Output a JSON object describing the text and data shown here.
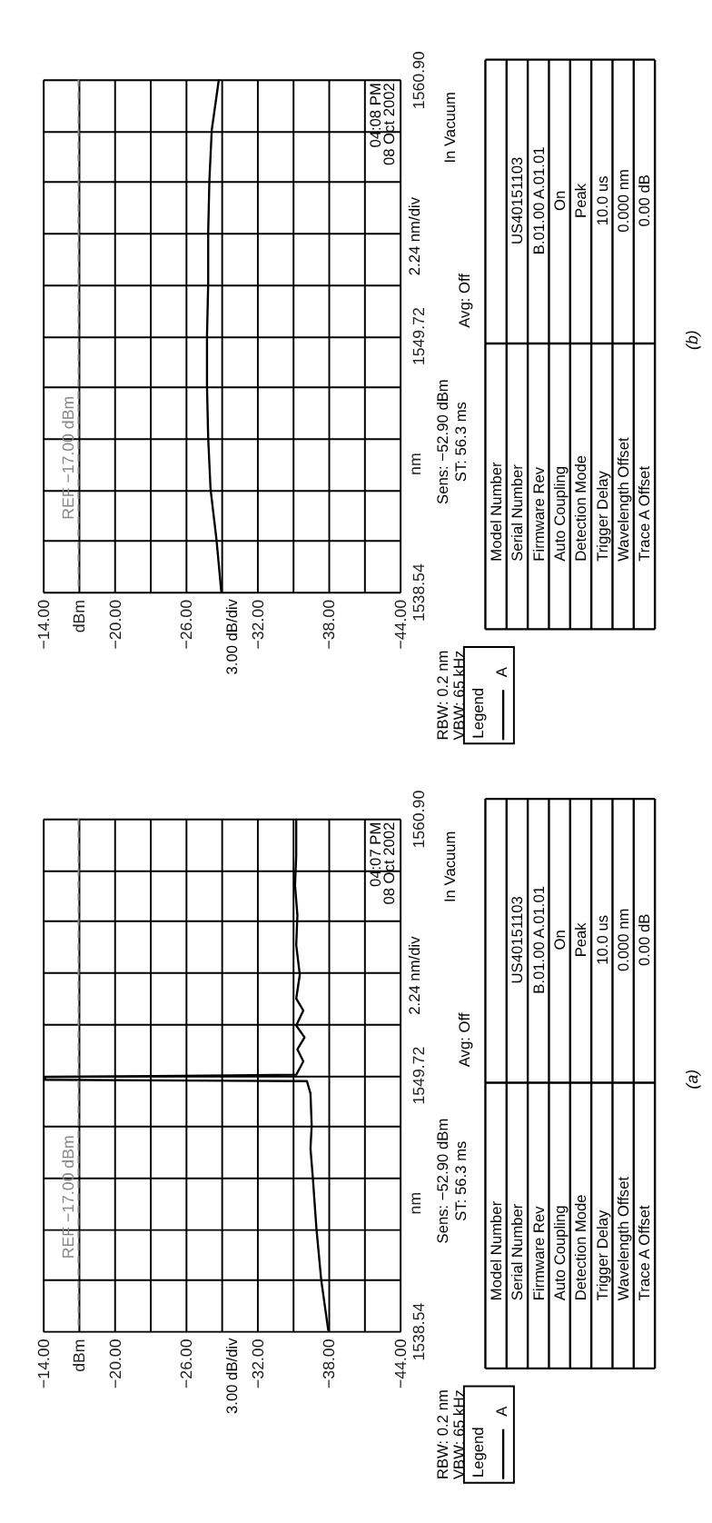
{
  "chart_data": [
    {
      "type": "line",
      "orientation": "horizontal",
      "grid": true,
      "legend": "bottom right",
      "legend_title": "Legend",
      "ylabel": "nm",
      "xlim": [
        -14,
        -44
      ],
      "ylim": [
        1538.54,
        1560.9
      ],
      "xticks": [
        {
          "value": -14,
          "label": "−14.00"
        },
        {
          "value": -17,
          "label": "dBm"
        },
        {
          "value": -20,
          "label": "−20.00"
        },
        {
          "value": -23,
          "label": null
        },
        {
          "value": -26,
          "label": "−26.00"
        },
        {
          "value": -29,
          "label": null
        },
        {
          "value": -32,
          "label": "−32.00"
        },
        {
          "value": -35,
          "label": null
        },
        {
          "value": -38,
          "label": "−38.00"
        },
        {
          "value": -41,
          "label": null
        },
        {
          "value": -44,
          "label": "−44.00"
        }
      ],
      "yticks": [
        {
          "value": 1538.54,
          "label": "1538.54"
        },
        {
          "value": 1540.78,
          "label": null
        },
        {
          "value": 1543.01,
          "label": null
        },
        {
          "value": 1545.25,
          "label": null
        },
        {
          "value": 1547.48,
          "label": null
        },
        {
          "value": 1549.72,
          "label": "1549.72"
        },
        {
          "value": 1551.96,
          "label": null
        },
        {
          "value": 1554.19,
          "label": null
        },
        {
          "value": 1556.43,
          "label": null
        },
        {
          "value": 1558.66,
          "label": null
        },
        {
          "value": 1560.9,
          "label": "1560.90"
        }
      ],
      "ref_lines": [
        {
          "axis": "x",
          "value": -17,
          "label": "REF −17.00 dBm",
          "color": "#888888",
          "line_style": "dashed"
        }
      ],
      "series": [
        {
          "name": "A",
          "color": "#000000",
          "x": [
            1538.54,
            1540.8,
            1543.01,
            1545.25,
            1547.51,
            1549.72,
            1551.98,
            1554.22,
            1556.48,
            1558.69,
            1560.9
          ],
          "values": [
            -29.0,
            -28.6,
            -28.1,
            -27.9,
            -27.8,
            -27.8,
            -27.9,
            -27.9,
            -28.0,
            -28.2,
            -28.8
          ]
        }
      ],
      "annotations": [
        "04:08 PM",
        "08 Oct 2002",
        "Sens: −52.90 dBm",
        "ST: 56.3 ms",
        "Avg: Off",
        "In Vacuum",
        "2.24 nm/div",
        "3.00 dB/div",
        "RBW: 0.2 nm",
        "VBW: 65 kHz",
        "Model Number",
        "Serial Number",
        "Firmware Rev",
        "Auto Coupling",
        "Detection Mode",
        "Trigger Delay",
        "Wavelength Offset",
        "Trace A Offset",
        "US40151103",
        "B.01.00 A.01.01",
        "On",
        "Peak",
        "10.0 us",
        "0.000 nm",
        "0.00 dB",
        "(b)"
      ]
    },
    {
      "type": "line",
      "orientation": "horizontal",
      "grid": true,
      "legend": "bottom right",
      "legend_title": "Legend",
      "ylabel": "nm",
      "xlim": [
        -14,
        -44
      ],
      "ylim": [
        1538.54,
        1560.9
      ],
      "xticks": [
        {
          "value": -14,
          "label": "−14.00"
        },
        {
          "value": -17,
          "label": "dBm"
        },
        {
          "value": -20,
          "label": "−20.00"
        },
        {
          "value": -23,
          "label": null
        },
        {
          "value": -26,
          "label": "−26.00"
        },
        {
          "value": -29,
          "label": null
        },
        {
          "value": -32,
          "label": "−32.00"
        },
        {
          "value": -35,
          "label": null
        },
        {
          "value": -38,
          "label": "−38.00"
        },
        {
          "value": -41,
          "label": null
        },
        {
          "value": -44,
          "label": "−44.00"
        }
      ],
      "yticks": [
        {
          "value": 1538.54,
          "label": "1538.54"
        },
        {
          "value": 1540.78,
          "label": null
        },
        {
          "value": 1543.01,
          "label": null
        },
        {
          "value": 1545.25,
          "label": null
        },
        {
          "value": 1547.48,
          "label": null
        },
        {
          "value": 1549.72,
          "label": "1549.72"
        },
        {
          "value": 1551.96,
          "label": null
        },
        {
          "value": 1554.19,
          "label": null
        },
        {
          "value": 1556.43,
          "label": null
        },
        {
          "value": 1558.66,
          "label": null
        },
        {
          "value": 1560.9,
          "label": "1560.90"
        }
      ],
      "ref_lines": [
        {
          "axis": "x",
          "value": -17,
          "label": "REF −17.00 dBm",
          "color": "#888888",
          "line_style": "dashed"
        }
      ],
      "series": [
        {
          "name": "A",
          "color": "#000000",
          "x": [
            1538.54,
            1540.77,
            1543.0,
            1545.2,
            1546.5,
            1547.5,
            1548.9,
            1549.44,
            1549.5,
            1549.62,
            1549.72,
            1550.3,
            1550.83,
            1551.35,
            1551.87,
            1552.52,
            1553.04,
            1554.08,
            1555.38,
            1556.68,
            1557.99,
            1559.28,
            1560.9
          ],
          "values": [
            -38.0,
            -37.4,
            -37.0,
            -36.7,
            -36.5,
            -36.6,
            -36.5,
            -36.2,
            -14.2,
            -14.2,
            -35.3,
            -35.9,
            -35.4,
            -36.0,
            -35.3,
            -35.9,
            -35.3,
            -35.6,
            -35.3,
            -35.4,
            -35.2,
            -35.3,
            -35.3
          ]
        }
      ],
      "annotations": [
        "04:07 PM",
        "08 Oct 2002",
        "Sens: −52.90 dBm",
        "ST: 56.3 ms",
        "Avg: Off",
        "In Vacuum",
        "2.24 nm/div",
        "3.00 dB/div",
        "RBW: 0.2 nm",
        "VBW: 65 kHz",
        "Model Number",
        "Serial Number",
        "Firmware Rev",
        "Auto Coupling",
        "Detection Mode",
        "Trigger Delay",
        "Wavelength Offset",
        "Trace A Offset",
        "US40151103",
        "B.01.00 A.01.01",
        "On",
        "Peak",
        "10.0 us",
        "0.000 nm",
        "0.00 dB",
        "(a)"
      ]
    }
  ]
}
